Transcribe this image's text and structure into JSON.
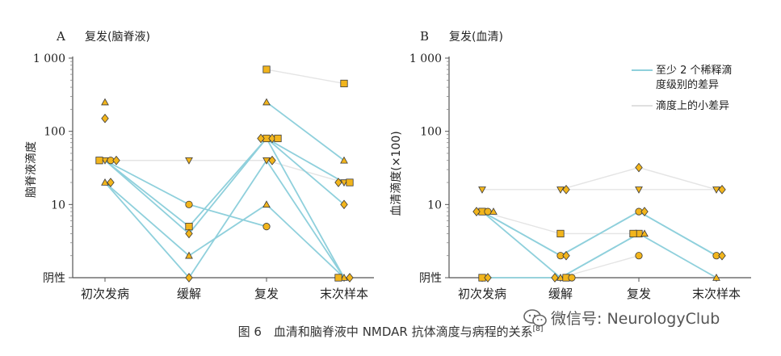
{
  "figure_caption": "图 6　血清和脑脊液中 NMDAR 抗体滴度与病程的关系",
  "caption_ref": "[8]",
  "watermark": "微信号: NeurologyClub",
  "colors": {
    "big_change_line": "#8fd0dc",
    "small_change_line": "#e4e4e4",
    "marker_fill": "#f2b51c",
    "marker_dark": "#6b5a1a",
    "marker_stroke": "#3a3a3a",
    "axis": "#555555"
  },
  "legend": {
    "big_change": "至少 2 个稀释滴度级别的差异",
    "big_change_line1": "至少 2 个稀释滴",
    "big_change_line2": "度级别的差异",
    "small_change": "滴度上的小差异"
  },
  "chart_data": [
    {
      "panel_letter": "A",
      "title": "复发(脑脊液)",
      "type": "line",
      "yscale": "log",
      "ylabel": "脑脊液滴度",
      "y_tick_labels": [
        "1 000",
        "100",
        "10",
        "阴性"
      ],
      "y_tick_values": [
        1000,
        100,
        10,
        1
      ],
      "categories": [
        "初次发病",
        "缓解",
        "复发",
        "末次样本"
      ],
      "patients": [
        {
          "change": "small",
          "points": [
            [
              0,
              40
            ],
            [
              1,
              40
            ],
            [
              2,
              40
            ],
            [
              3,
              20
            ]
          ],
          "marker": "triangle-down"
        },
        {
          "change": "small",
          "points": [
            [
              2,
              700
            ],
            [
              3,
              450
            ]
          ],
          "marker": "square"
        },
        {
          "change": "big",
          "points": [
            [
              0,
              40
            ],
            [
              1,
              10
            ],
            [
              2,
              5
            ]
          ],
          "marker": "circle"
        },
        {
          "change": "big",
          "points": [
            [
              0,
              40
            ],
            [
              1,
              5
            ],
            [
              2,
              80
            ],
            [
              3,
              20
            ]
          ],
          "marker": "square"
        },
        {
          "change": "big",
          "points": [
            [
              0,
              40
            ],
            [
              1,
              4
            ],
            [
              2,
              80
            ],
            [
              3,
              10
            ]
          ],
          "marker": "diamond"
        },
        {
          "change": "big",
          "points": [
            [
              0,
              20
            ],
            [
              1,
              2
            ],
            [
              2,
              10
            ],
            [
              3,
              1
            ]
          ],
          "marker": "triangle-up"
        },
        {
          "change": "big",
          "points": [
            [
              0,
              20
            ],
            [
              1,
              1
            ],
            [
              2,
              40
            ],
            [
              3,
              1
            ]
          ],
          "marker": "diamond"
        },
        {
          "change": "big",
          "points": [
            [
              2,
              250
            ],
            [
              3,
              40
            ]
          ],
          "marker": "triangle-up"
        },
        {
          "change": "small",
          "points": [
            [
              2,
              80
            ],
            [
              3,
              20
            ]
          ],
          "marker": "diamond"
        },
        {
          "change": "big",
          "points": [
            [
              2,
              80
            ],
            [
              3,
              1
            ]
          ],
          "marker": "square"
        },
        {
          "change": "none",
          "points": [
            [
              0,
              250
            ]
          ],
          "marker": "triangle-up"
        },
        {
          "change": "none",
          "points": [
            [
              0,
              150
            ]
          ],
          "marker": "diamond"
        }
      ]
    },
    {
      "panel_letter": "B",
      "title": "复发(血清)",
      "type": "line",
      "yscale": "log",
      "ylabel": "血清滴度(×100)",
      "y_tick_labels": [
        "1 000",
        "100",
        "10",
        "阴性"
      ],
      "y_tick_values": [
        1000,
        100,
        10,
        1
      ],
      "categories": [
        "初次发病",
        "缓解",
        "复发",
        "末次样本"
      ],
      "patients": [
        {
          "change": "small",
          "points": [
            [
              0,
              16
            ],
            [
              1,
              16
            ],
            [
              2,
              16
            ],
            [
              3,
              16
            ]
          ],
          "marker": "triangle-down"
        },
        {
          "change": "small",
          "points": [
            [
              1,
              16
            ],
            [
              2,
              32
            ],
            [
              3,
              16
            ]
          ],
          "marker": "diamond"
        },
        {
          "change": "small",
          "points": [
            [
              0,
              8
            ],
            [
              1,
              4
            ],
            [
              2,
              4
            ]
          ],
          "marker": "square"
        },
        {
          "change": "big",
          "points": [
            [
              0,
              8
            ],
            [
              1,
              2
            ],
            [
              2,
              8
            ],
            [
              3,
              2
            ]
          ],
          "marker": "circle"
        },
        {
          "change": "big",
          "points": [
            [
              0,
              8
            ],
            [
              1,
              2
            ],
            [
              2,
              8
            ],
            [
              3,
              2
            ]
          ],
          "marker": "diamond"
        },
        {
          "change": "big",
          "points": [
            [
              0,
              8
            ],
            [
              1,
              1
            ],
            [
              2,
              4
            ],
            [
              3,
              1
            ]
          ],
          "marker": "triangle-up"
        },
        {
          "change": "big",
          "points": [
            [
              0,
              1
            ],
            [
              1,
              1
            ],
            [
              2,
              4
            ]
          ],
          "marker": "square"
        },
        {
          "change": "small",
          "points": [
            [
              0,
              1
            ],
            [
              1,
              1
            ]
          ],
          "marker": "diamond"
        },
        {
          "change": "small",
          "points": [
            [
              1,
              1
            ],
            [
              2,
              2
            ]
          ],
          "marker": "circle"
        }
      ]
    }
  ]
}
